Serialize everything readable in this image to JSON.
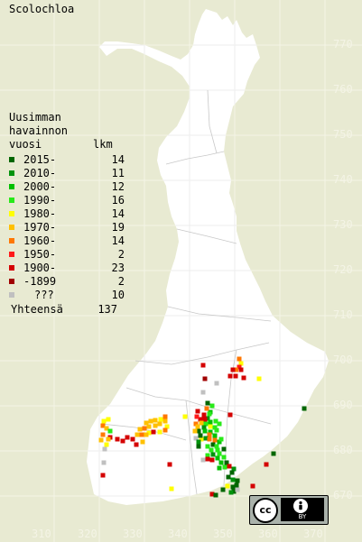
{
  "map": {
    "species": "Scolochloa",
    "legend_title": "Uusimman\nhavainnon\nvuosi",
    "count_header": "lkm",
    "total_label": "Yhteensä",
    "total_count": "137",
    "colors": {
      "background": "#e8ead2",
      "land": "#ffffff",
      "grid_on_water": "#f4f4e6",
      "grid_on_land": "#eeeeee",
      "border": "#c8c8c8"
    },
    "legend": [
      {
        "label": "2015-",
        "count": "14",
        "color": "#006600"
      },
      {
        "label": "2010-",
        "count": "11",
        "color": "#00930d"
      },
      {
        "label": "2000-",
        "count": "12",
        "color": "#00c000"
      },
      {
        "label": "1990-",
        "count": "16",
        "color": "#27ea18"
      },
      {
        "label": "1980-",
        "count": "14",
        "color": "#ffff00"
      },
      {
        "label": "1970-",
        "count": "19",
        "color": "#ffc000"
      },
      {
        "label": "1960-",
        "count": "14",
        "color": "#ff7700"
      },
      {
        "label": "1950-",
        "count": "2",
        "color": "#ff1a1a"
      },
      {
        "label": "1900-",
        "count": "23",
        "color": "#d40000"
      },
      {
        "label": "-1899",
        "count": "2",
        "color": "#a00000"
      },
      {
        "label": "???",
        "count": "10",
        "color": "#c0c0c0"
      }
    ],
    "y_axis_ticks": [
      "770",
      "760",
      "750",
      "740",
      "730",
      "720",
      "710",
      "700",
      "690",
      "680",
      "670"
    ],
    "x_axis_ticks": [
      "310",
      "320",
      "330",
      "340",
      "350",
      "360",
      "370"
    ],
    "license": {
      "cc_label": "cc",
      "by_icon": "person-icon",
      "by_label": "BY"
    }
  }
}
